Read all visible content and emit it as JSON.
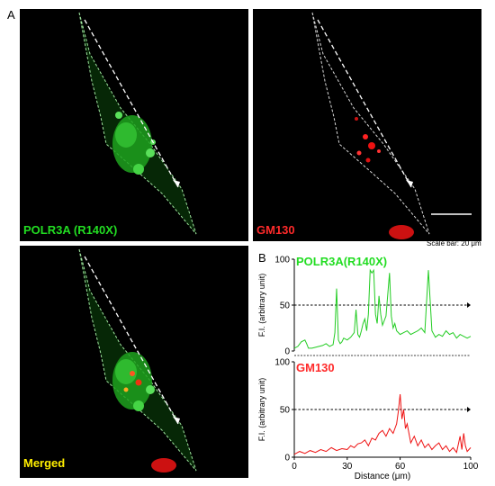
{
  "figure": {
    "panel_a_label": "A",
    "panel_b_label": "B",
    "images": {
      "green": {
        "label": "POLR3A (R140X)",
        "label_color": "#22dd22"
      },
      "red": {
        "label": "GM130",
        "label_color": "#ff2a2a"
      },
      "merged": {
        "label": "Merged",
        "label_color": "#ffee00"
      }
    },
    "scale_bar_text": "Scale bar: 20 μm"
  },
  "chart_data": [
    {
      "type": "line",
      "title": "POLR3A(R140X)",
      "title_color": "#22dd22",
      "line_color": "#22cc22",
      "ylabel": "F.I. (arbitrary unit)",
      "xlim": [
        0,
        100
      ],
      "ylim": [
        0,
        100
      ],
      "yticks": [
        0,
        50,
        100
      ],
      "reference_line": 50,
      "x": [
        0,
        2,
        4,
        6,
        7,
        8,
        10,
        12,
        14,
        16,
        18,
        20,
        22,
        23,
        24,
        25,
        26,
        27,
        28,
        30,
        32,
        34,
        35,
        36,
        37,
        38,
        39,
        40,
        41,
        42,
        43,
        44,
        45,
        46,
        47,
        48,
        49,
        50,
        52,
        54,
        55,
        56,
        57,
        58,
        60,
        62,
        64,
        66,
        68,
        70,
        72,
        74,
        76,
        78,
        80,
        82,
        84,
        86,
        88,
        90,
        92,
        94,
        96,
        98,
        100
      ],
      "values": [
        3,
        5,
        10,
        12,
        8,
        3,
        3,
        4,
        5,
        6,
        8,
        5,
        7,
        20,
        68,
        12,
        8,
        10,
        14,
        12,
        15,
        20,
        45,
        18,
        15,
        22,
        30,
        35,
        22,
        40,
        88,
        85,
        88,
        40,
        30,
        60,
        40,
        28,
        38,
        85,
        38,
        25,
        30,
        22,
        18,
        20,
        22,
        18,
        20,
        22,
        25,
        20,
        88,
        22,
        15,
        18,
        16,
        22,
        18,
        20,
        14,
        18,
        16,
        14,
        16
      ]
    },
    {
      "type": "line",
      "title": "GM130",
      "title_color": "#ff2a2a",
      "line_color": "#ee1111",
      "ylabel": "F.I. (arbitrary unit)",
      "xlabel": "Distance (μm)",
      "xlim": [
        0,
        100
      ],
      "ylim": [
        0,
        100
      ],
      "xticks": [
        0,
        30,
        60,
        100
      ],
      "yticks": [
        0,
        50,
        100
      ],
      "reference_line": 50,
      "x": [
        0,
        3,
        6,
        9,
        12,
        15,
        18,
        21,
        24,
        27,
        30,
        32,
        34,
        36,
        38,
        40,
        42,
        44,
        46,
        48,
        50,
        52,
        54,
        56,
        58,
        59,
        60,
        61,
        62,
        63,
        64,
        66,
        68,
        70,
        72,
        74,
        76,
        78,
        80,
        82,
        84,
        86,
        88,
        90,
        92,
        94,
        95,
        96,
        97,
        98,
        100
      ],
      "values": [
        3,
        6,
        4,
        7,
        5,
        8,
        6,
        10,
        7,
        9,
        8,
        12,
        10,
        14,
        15,
        18,
        12,
        20,
        18,
        25,
        28,
        22,
        30,
        25,
        35,
        48,
        66,
        40,
        50,
        30,
        35,
        15,
        22,
        12,
        18,
        10,
        14,
        8,
        12,
        15,
        8,
        12,
        6,
        10,
        5,
        22,
        8,
        25,
        12,
        6,
        10
      ]
    }
  ]
}
